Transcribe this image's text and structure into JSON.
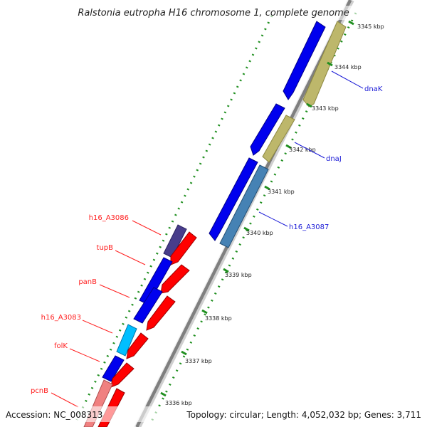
{
  "title": "Ralstonia eutropha H16 chromosome 1, complete genome",
  "footer": {
    "accession": "Accession: NC_008313",
    "topology": "Topology: circular; Length: 4,052,032 bp; Genes: 3,711"
  },
  "ticks": [
    "3345 kbp",
    "3344 kbp",
    "3343 kbp",
    "3342 kbp",
    "3341 kbp",
    "3340 kbp",
    "3339 kbp",
    "3338 kbp",
    "3337 kbp",
    "3336 kbp"
  ],
  "genes_left": [
    "h16_A3086",
    "tupB",
    "panB",
    "h16_A3083",
    "folK",
    "pcnB"
  ],
  "genes_right": [
    "dnaK",
    "dnaJ",
    "h16_A3087"
  ],
  "colors": {
    "cds_blue": "#0000ee",
    "cds_red": "#ff0000",
    "dnaK_khaki": "#bdb76b",
    "h16_A3087_steel": "#4682b4",
    "h16_A3086_slate": "#483d8b",
    "h16_A3083_cyan": "#00bfff",
    "pcnB_pink": "#f08080",
    "backbone": "#808080",
    "ticks_green": "#228b22",
    "label_left": "#ff2020",
    "label_right": "#1a1ad6"
  }
}
